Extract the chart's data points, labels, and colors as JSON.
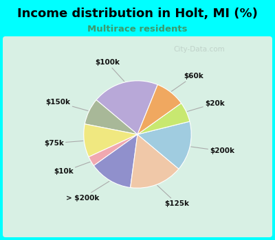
{
  "title": "Income distribution in Holt, MI (%)",
  "subtitle": "Multirace residents",
  "title_color": "#000000",
  "subtitle_color": "#3a9a6e",
  "background_outer": "#00ffff",
  "background_inner": "#d8f0e4",
  "labels": [
    "$100k",
    "$150k",
    "$75k",
    "$10k",
    "> $200k",
    "$125k",
    "$200k",
    "$20k",
    "$60k"
  ],
  "sizes": [
    20,
    8,
    10,
    3,
    13,
    16,
    15,
    6,
    9
  ],
  "colors": [
    "#b8a8d8",
    "#a8b898",
    "#f0e880",
    "#f0a8b0",
    "#9090cc",
    "#f0c8a8",
    "#a0cce0",
    "#c8e870",
    "#f0a860"
  ],
  "watermark": "City-Data.com",
  "startangle": 68
}
